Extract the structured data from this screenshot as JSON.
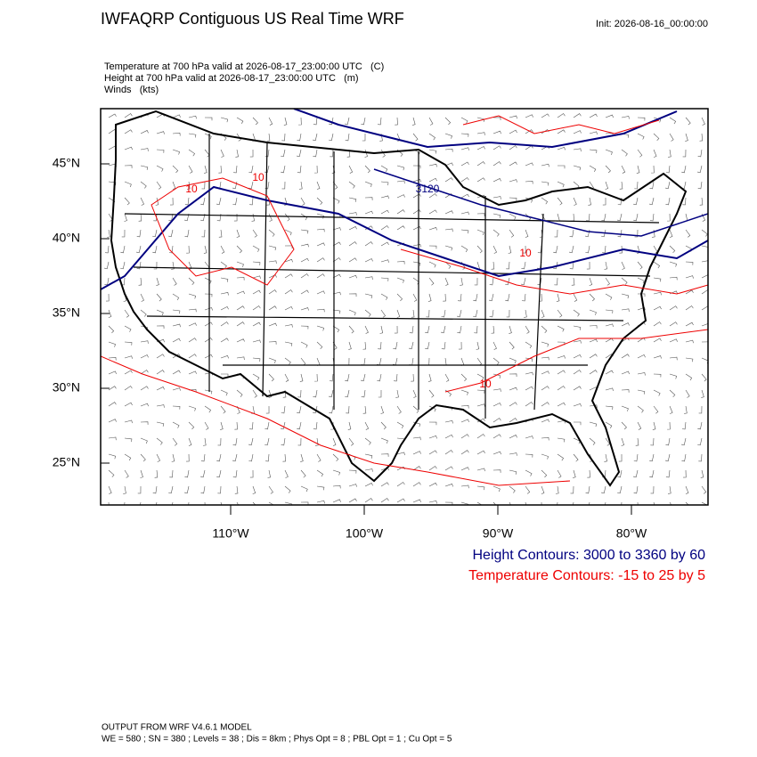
{
  "header": {
    "title": "IWFAQRP Contiguous US Real Time WRF",
    "init": "Init: 2026-08-16_00:00:00"
  },
  "fields": [
    "Temperature at 700 hPa valid at 2026-08-17_23:00:00 UTC   (C)",
    "Height at 700 hPa valid at 2026-08-17_23:00:00 UTC   (m)",
    "Winds   (kts)"
  ],
  "map": {
    "lat_labels": [
      "45°N",
      "40°N",
      "35°N",
      "30°N",
      "25°N"
    ],
    "lon_labels": [
      "110°W",
      "100°W",
      "90°W",
      "80°W"
    ],
    "contour_labels": [
      "3120",
      "10",
      "10",
      "10",
      "10"
    ]
  },
  "legend": {
    "height": "Height Contours: 3000 to 3360 by 60",
    "temperature": "Temperature Contours: -15 to 25 by 5"
  },
  "footer": [
    "OUTPUT FROM WRF V4.6.1 MODEL",
    "WE = 580 ; SN = 380 ; Levels = 38 ; Dis = 8km ; Phys Opt = 8 ; PBL Opt = 1 ; Cu Opt = 5"
  ]
}
